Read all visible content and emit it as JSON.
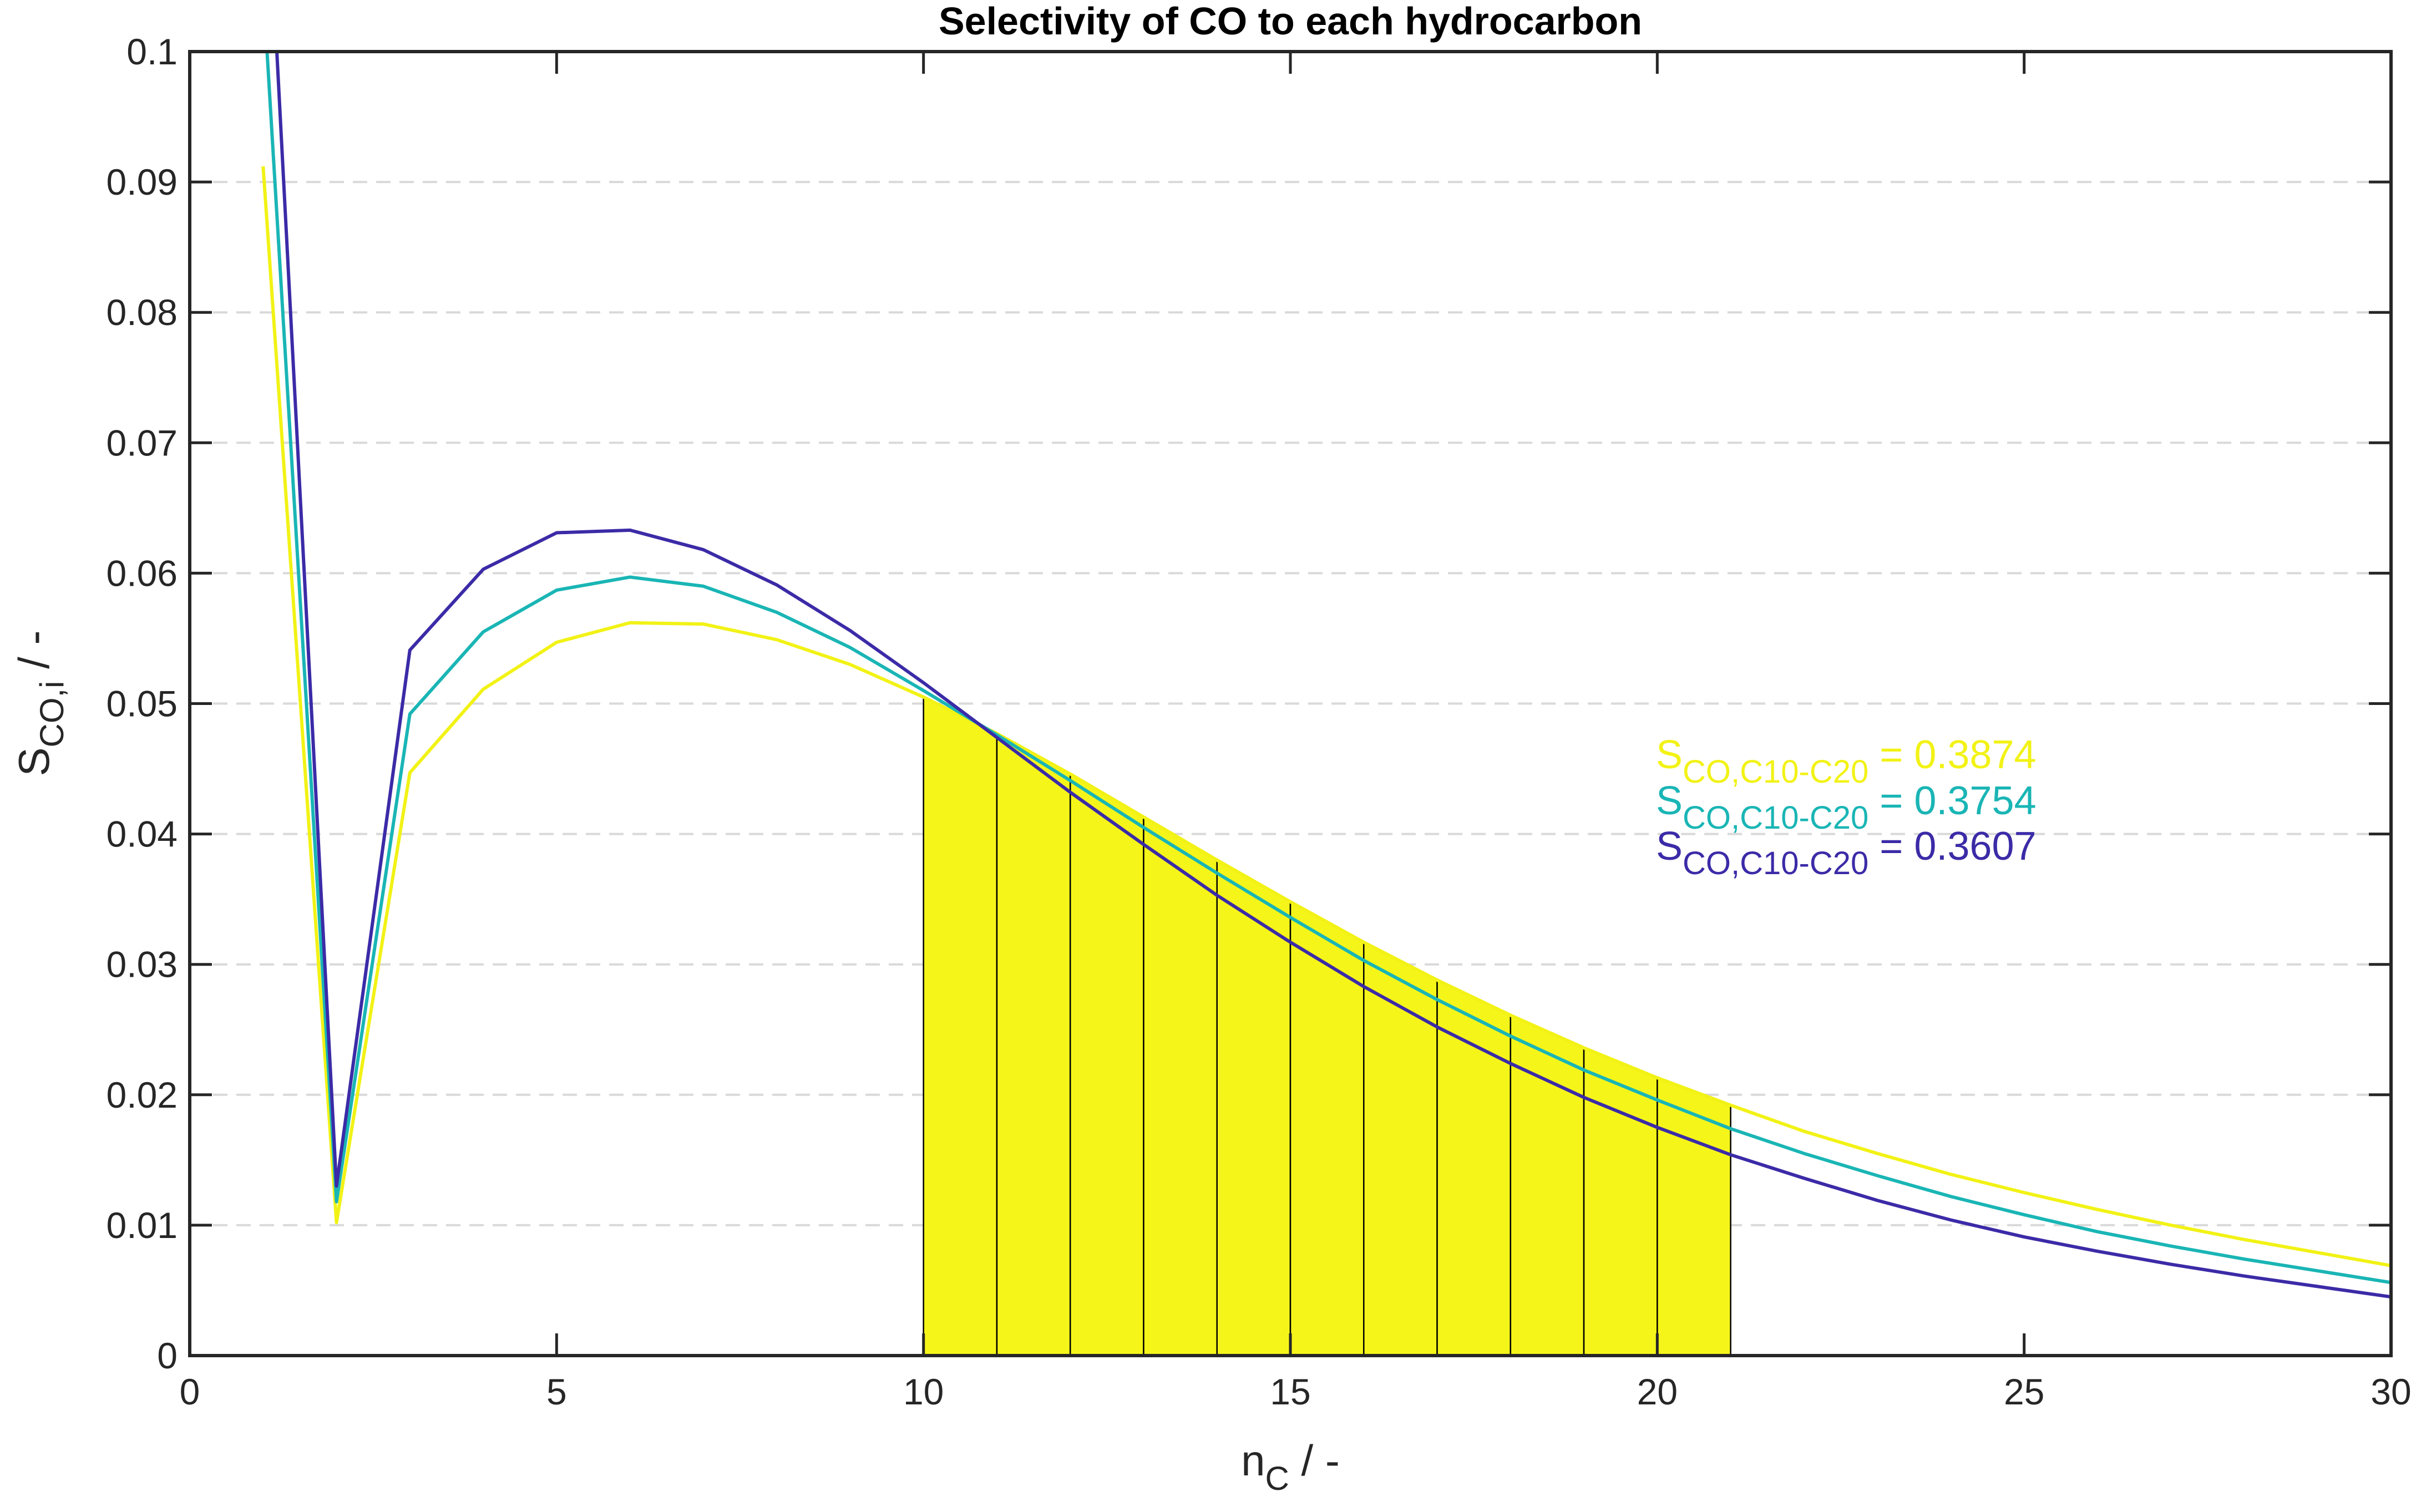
{
  "chart_data": {
    "type": "line",
    "title": "Selectivity of CO to each hydrocarbon",
    "xlabel": {
      "main": "n",
      "sub": "C",
      "suffix": " / -"
    },
    "ylabel": {
      "main": "S",
      "sub": "CO,i",
      "suffix": " / -"
    },
    "xlim": [
      0,
      30
    ],
    "ylim": [
      0,
      0.1
    ],
    "x_ticks": [
      0,
      5,
      10,
      15,
      20,
      25,
      30
    ],
    "y_ticks": [
      0,
      0.01,
      0.02,
      0.03,
      0.04,
      0.05,
      0.06,
      0.07,
      0.08,
      0.09,
      0.1
    ],
    "x_tick_labels": [
      "0",
      "5",
      "10",
      "15",
      "20",
      "25",
      "30"
    ],
    "y_tick_labels": [
      "0",
      "0.01",
      "0.02",
      "0.03",
      "0.04",
      "0.05",
      "0.06",
      "0.07",
      "0.08",
      "0.09",
      "0.1"
    ],
    "grid": "horizontal dashed",
    "x": [
      1,
      2,
      3,
      4,
      5,
      6,
      7,
      8,
      9,
      10,
      11,
      12,
      13,
      14,
      15,
      16,
      17,
      18,
      19,
      20,
      21,
      22,
      23,
      24,
      25,
      26,
      27,
      28,
      29,
      30
    ],
    "series": [
      {
        "color": "#f2f216",
        "values": [
          0.0912,
          0.0102,
          0.0447,
          0.0511,
          0.0547,
          0.0562,
          0.0561,
          0.0549,
          0.053,
          0.0505,
          0.0477,
          0.0446,
          0.0413,
          0.038,
          0.0348,
          0.0317,
          0.0288,
          0.0261,
          0.0236,
          0.0213,
          0.0192,
          0.0172,
          0.0155,
          0.0139,
          0.0125,
          0.0112,
          0.01,
          0.0089,
          0.0079,
          0.0069
        ]
      },
      {
        "color": "#1ab5b5",
        "values": [
          0.105,
          0.0118,
          0.0492,
          0.0555,
          0.0587,
          0.0597,
          0.059,
          0.057,
          0.0543,
          0.051,
          0.0476,
          0.0441,
          0.0405,
          0.037,
          0.0336,
          0.0303,
          0.0273,
          0.0245,
          0.0219,
          0.0196,
          0.0174,
          0.0155,
          0.0138,
          0.0122,
          0.0108,
          0.0095,
          0.0084,
          0.0074,
          0.0065,
          0.0056
        ]
      },
      {
        "color": "#3b2ba7",
        "values": [
          0.12,
          0.013,
          0.0541,
          0.0603,
          0.0631,
          0.0633,
          0.0618,
          0.0591,
          0.0556,
          0.0516,
          0.0474,
          0.0432,
          0.0392,
          0.0353,
          0.0317,
          0.0283,
          0.0252,
          0.0224,
          0.0198,
          0.0175,
          0.0154,
          0.0136,
          0.0119,
          0.0104,
          0.0091,
          0.008,
          0.007,
          0.0061,
          0.0053,
          0.0045
        ]
      }
    ],
    "shaded_bars": {
      "color": "#f5f51a",
      "x_start": [
        10,
        11,
        12,
        13,
        14,
        15,
        16,
        17,
        18,
        19,
        20
      ],
      "top_values": [
        0.0505,
        0.0477,
        0.0446,
        0.0413,
        0.038,
        0.0348,
        0.0317,
        0.0288,
        0.0261,
        0.0236,
        0.0213
      ],
      "end_value": 0.0192
    },
    "annotations": [
      {
        "main": "S",
        "sub": "CO,C10-C20",
        "value": " = 0.3874",
        "color": "#f2f216"
      },
      {
        "main": "S",
        "sub": "CO,C10-C20",
        "value": " = 0.3754",
        "color": "#1ab5b5"
      },
      {
        "main": "S",
        "sub": "CO,C10-C20",
        "value": " = 0.3607",
        "color": "#3b2ba7"
      }
    ]
  }
}
